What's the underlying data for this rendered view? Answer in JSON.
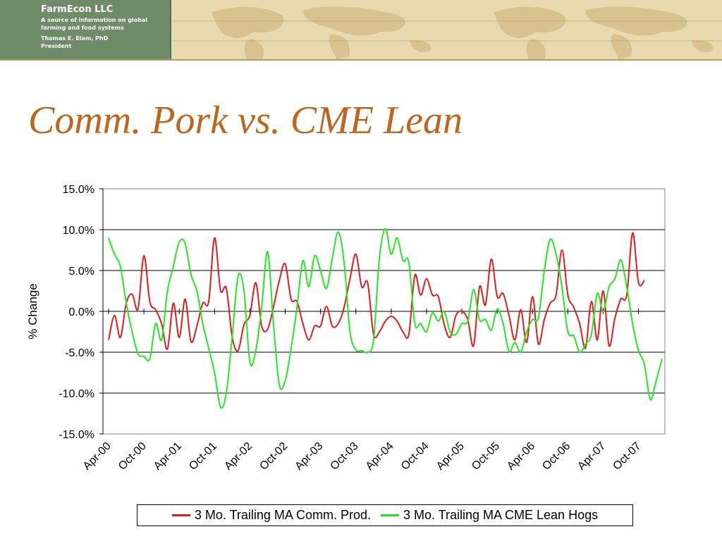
{
  "header": {
    "company": "FarmEcon LLC",
    "tagline": "A source of information on global farming and food systems",
    "person": "Thomas E. Elam, PhD",
    "role": "President"
  },
  "slide": {
    "title": "Comm. Pork vs. CME Lean"
  },
  "colors": {
    "comm_prod": "#e41a1a",
    "cme_lean": "#22e822",
    "title": "#c0651e"
  },
  "chart_data": {
    "type": "line",
    "title": "",
    "xlabel": "",
    "ylabel": "% Change",
    "ylim": [
      -15,
      15
    ],
    "yticks": [
      "15.0%",
      "10.0%",
      "5.0%",
      "0.0%",
      "-5.0%",
      "-10.0%",
      "-15.0%"
    ],
    "xtick_labels": [
      "Apr-00",
      "Oct-00",
      "Apr-01",
      "Oct-01",
      "Apr-02",
      "Oct-02",
      "Apr-03",
      "Oct-03",
      "Apr-04",
      "Oct-04",
      "Apr-05",
      "Oct-05",
      "Apr-06",
      "Oct-06",
      "Apr-07",
      "Oct-07"
    ],
    "grid": "horizontal",
    "legend": "bottom",
    "x_start": "Apr-00",
    "x_end": "Feb-08",
    "series": [
      {
        "name": "3 Mo. Trailing MA Comm. Prod.",
        "color": "#e41a1a",
        "points": [
          [
            "2000-04",
            -3.5
          ],
          [
            "2000-05",
            -0.5
          ],
          [
            "2000-06",
            -3.2
          ],
          [
            "2000-07",
            1.0
          ],
          [
            "2000-08",
            2.1
          ],
          [
            "2000-09",
            0.3
          ],
          [
            "2000-10",
            6.8
          ],
          [
            "2000-11",
            1.2
          ],
          [
            "2000-12",
            0.2
          ],
          [
            "2001-01",
            -1.5
          ],
          [
            "2001-02",
            -4.6
          ],
          [
            "2001-03",
            1.0
          ],
          [
            "2001-04",
            -3.2
          ],
          [
            "2001-05",
            1.5
          ],
          [
            "2001-06",
            -3.7
          ],
          [
            "2001-07",
            -1.8
          ],
          [
            "2001-08",
            1.0
          ],
          [
            "2001-09",
            1.2
          ],
          [
            "2001-10",
            9.0
          ],
          [
            "2001-11",
            2.6
          ],
          [
            "2001-12",
            2.8
          ],
          [
            "2002-01",
            -3.2
          ],
          [
            "2002-02",
            -4.8
          ],
          [
            "2002-03",
            -1.6
          ],
          [
            "2002-04",
            -0.5
          ],
          [
            "2002-05",
            3.5
          ],
          [
            "2002-06",
            -1.8
          ],
          [
            "2002-07",
            -2.2
          ],
          [
            "2002-08",
            0.5
          ],
          [
            "2002-09",
            3.8
          ],
          [
            "2002-10",
            5.8
          ],
          [
            "2002-11",
            1.5
          ],
          [
            "2002-12",
            1.2
          ],
          [
            "2003-01",
            -1.5
          ],
          [
            "2003-02",
            -3.5
          ],
          [
            "2003-03",
            -1.8
          ],
          [
            "2003-04",
            -1.8
          ],
          [
            "2003-05",
            0.6
          ],
          [
            "2003-06",
            -1.8
          ],
          [
            "2003-07",
            -1.5
          ],
          [
            "2003-08",
            0.5
          ],
          [
            "2003-09",
            4.0
          ],
          [
            "2003-10",
            7.0
          ],
          [
            "2003-11",
            3.0
          ],
          [
            "2003-12",
            3.5
          ],
          [
            "2004-01",
            -2.8
          ],
          [
            "2004-02",
            -2.5
          ],
          [
            "2004-03",
            -1.2
          ],
          [
            "2004-04",
            -0.6
          ],
          [
            "2004-05",
            -1.2
          ],
          [
            "2004-06",
            -2.5
          ],
          [
            "2004-07",
            -2.8
          ],
          [
            "2004-08",
            4.4
          ],
          [
            "2004-09",
            2.0
          ],
          [
            "2004-10",
            4.0
          ],
          [
            "2004-11",
            2.0
          ],
          [
            "2004-12",
            1.8
          ],
          [
            "2005-01",
            -1.6
          ],
          [
            "2005-02",
            -3.2
          ],
          [
            "2005-03",
            -0.5
          ],
          [
            "2005-04",
            0.0
          ],
          [
            "2005-05",
            -1.0
          ],
          [
            "2005-06",
            -4.2
          ],
          [
            "2005-07",
            3.0
          ],
          [
            "2005-08",
            0.8
          ],
          [
            "2005-09",
            6.4
          ],
          [
            "2005-10",
            1.8
          ],
          [
            "2005-11",
            2.2
          ],
          [
            "2005-12",
            -0.5
          ],
          [
            "2006-01",
            -3.5
          ],
          [
            "2006-02",
            0.2
          ],
          [
            "2006-03",
            -3.8
          ],
          [
            "2006-04",
            1.8
          ],
          [
            "2006-05",
            -4.0
          ],
          [
            "2006-06",
            -1.0
          ],
          [
            "2006-07",
            1.0
          ],
          [
            "2006-08",
            2.0
          ],
          [
            "2006-09",
            7.5
          ],
          [
            "2006-10",
            2.0
          ],
          [
            "2006-11",
            0.5
          ],
          [
            "2006-12",
            -1.5
          ],
          [
            "2007-01",
            -4.5
          ],
          [
            "2007-02",
            1.2
          ],
          [
            "2007-03",
            -3.5
          ],
          [
            "2007-04",
            2.5
          ],
          [
            "2007-05",
            -4.2
          ],
          [
            "2007-06",
            -0.8
          ],
          [
            "2007-07",
            1.5
          ],
          [
            "2007-08",
            2.0
          ],
          [
            "2007-09",
            9.6
          ],
          [
            "2007-10",
            3.5
          ],
          [
            "2007-11",
            3.8
          ]
        ]
      },
      {
        "name": "3 Mo. Trailing MA CME Lean Hogs",
        "color": "#22e822",
        "points": [
          [
            "2000-04",
            9.0
          ],
          [
            "2000-05",
            7.0
          ],
          [
            "2000-06",
            5.5
          ],
          [
            "2000-07",
            1.0
          ],
          [
            "2000-08",
            -2.5
          ],
          [
            "2000-09",
            -5.2
          ],
          [
            "2000-10",
            -5.5
          ],
          [
            "2000-11",
            -5.8
          ],
          [
            "2000-12",
            -1.5
          ],
          [
            "2001-01",
            -3.5
          ],
          [
            "2001-02",
            2.5
          ],
          [
            "2001-03",
            5.5
          ],
          [
            "2001-04",
            8.5
          ],
          [
            "2001-05",
            8.3
          ],
          [
            "2001-06",
            4.5
          ],
          [
            "2001-07",
            2.5
          ],
          [
            "2001-08",
            -1.5
          ],
          [
            "2001-09",
            -4.5
          ],
          [
            "2001-10",
            -7.5
          ],
          [
            "2001-11",
            -11.7
          ],
          [
            "2001-12",
            -10.0
          ],
          [
            "2002-01",
            -3.0
          ],
          [
            "2002-02",
            4.3
          ],
          [
            "2002-03",
            2.5
          ],
          [
            "2002-04",
            -6.2
          ],
          [
            "2002-05",
            -4.8
          ],
          [
            "2002-06",
            0.5
          ],
          [
            "2002-07",
            7.3
          ],
          [
            "2002-08",
            -1.5
          ],
          [
            "2002-09",
            -9.0
          ],
          [
            "2002-10",
            -8.5
          ],
          [
            "2002-11",
            -4.5
          ],
          [
            "2002-12",
            0.5
          ],
          [
            "2003-01",
            6.2
          ],
          [
            "2003-02",
            3.0
          ],
          [
            "2003-03",
            6.8
          ],
          [
            "2003-04",
            5.0
          ],
          [
            "2003-05",
            2.8
          ],
          [
            "2003-06",
            6.5
          ],
          [
            "2003-07",
            9.7
          ],
          [
            "2003-08",
            6.0
          ],
          [
            "2003-09",
            -2.5
          ],
          [
            "2003-10",
            -4.7
          ],
          [
            "2003-11",
            -4.8
          ],
          [
            "2003-12",
            -5.0
          ],
          [
            "2004-01",
            -3.5
          ],
          [
            "2004-02",
            6.5
          ],
          [
            "2004-03",
            10.1
          ],
          [
            "2004-04",
            7.0
          ],
          [
            "2004-05",
            9.0
          ],
          [
            "2004-06",
            6.2
          ],
          [
            "2004-07",
            6.0
          ],
          [
            "2004-08",
            -1.5
          ],
          [
            "2004-09",
            -1.5
          ],
          [
            "2004-10",
            -2.5
          ],
          [
            "2004-11",
            -0.2
          ],
          [
            "2004-12",
            -1.2
          ],
          [
            "2005-01",
            0.0
          ],
          [
            "2005-02",
            -2.5
          ],
          [
            "2005-03",
            -2.8
          ],
          [
            "2005-04",
            -1.5
          ],
          [
            "2005-05",
            -1.2
          ],
          [
            "2005-06",
            2.7
          ],
          [
            "2005-07",
            -1.0
          ],
          [
            "2005-08",
            -1.0
          ],
          [
            "2005-09",
            -2.3
          ],
          [
            "2005-10",
            0.3
          ],
          [
            "2005-11",
            -1.5
          ],
          [
            "2005-12",
            -4.9
          ],
          [
            "2006-01",
            -3.8
          ],
          [
            "2006-02",
            -5.0
          ],
          [
            "2006-03",
            -2.5
          ],
          [
            "2006-04",
            -1.0
          ],
          [
            "2006-05",
            -0.8
          ],
          [
            "2006-06",
            5.0
          ],
          [
            "2006-07",
            8.8
          ],
          [
            "2006-08",
            7.0
          ],
          [
            "2006-09",
            3.0
          ],
          [
            "2006-10",
            -2.5
          ],
          [
            "2006-11",
            -3.0
          ],
          [
            "2006-12",
            -5.0
          ],
          [
            "2007-01",
            -4.0
          ],
          [
            "2007-02",
            -2.8
          ],
          [
            "2007-03",
            2.2
          ],
          [
            "2007-04",
            0.0
          ],
          [
            "2007-05",
            3.0
          ],
          [
            "2007-06",
            4.0
          ],
          [
            "2007-07",
            6.3
          ],
          [
            "2007-08",
            3.0
          ],
          [
            "2007-09",
            -1.5
          ],
          [
            "2007-10",
            -4.8
          ],
          [
            "2007-11",
            -6.5
          ],
          [
            "2007-12",
            -10.8
          ],
          [
            "2008-01",
            -8.5
          ],
          [
            "2008-02",
            -5.8
          ]
        ]
      }
    ]
  }
}
